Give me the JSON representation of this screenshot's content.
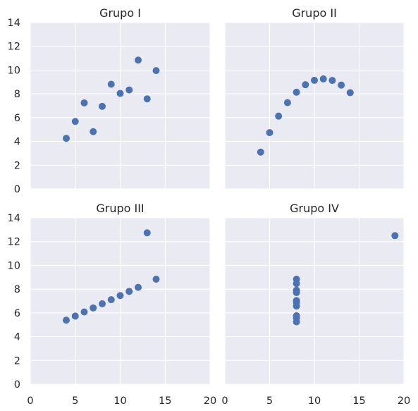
{
  "chart_data": [
    {
      "type": "scatter",
      "title": "Grupo I",
      "x": [
        10,
        8,
        13,
        9,
        11,
        14,
        6,
        4,
        12,
        7,
        5
      ],
      "y": [
        8.04,
        6.95,
        7.58,
        8.81,
        8.33,
        9.96,
        7.24,
        4.26,
        10.84,
        4.82,
        5.68
      ],
      "xlim": [
        0,
        20
      ],
      "ylim": [
        0,
        14
      ],
      "xticks": [
        0,
        5,
        10,
        15,
        20
      ],
      "yticks": [
        0,
        2,
        4,
        6,
        8,
        10,
        12,
        14
      ],
      "show_xticklabels": false,
      "show_yticklabels": true,
      "grid": true,
      "color": "#4c72b0"
    },
    {
      "type": "scatter",
      "title": "Grupo II",
      "x": [
        10,
        8,
        13,
        9,
        11,
        14,
        6,
        4,
        12,
        7,
        5
      ],
      "y": [
        9.14,
        8.14,
        8.74,
        8.77,
        9.26,
        8.1,
        6.13,
        3.1,
        9.13,
        7.26,
        4.74
      ],
      "xlim": [
        0,
        20
      ],
      "ylim": [
        0,
        14
      ],
      "xticks": [
        0,
        5,
        10,
        15,
        20
      ],
      "yticks": [
        0,
        2,
        4,
        6,
        8,
        10,
        12,
        14
      ],
      "show_xticklabels": false,
      "show_yticklabels": false,
      "grid": true,
      "color": "#4c72b0"
    },
    {
      "type": "scatter",
      "title": "Grupo III",
      "x": [
        10,
        8,
        13,
        9,
        11,
        14,
        6,
        4,
        12,
        7,
        5
      ],
      "y": [
        7.46,
        6.77,
        12.74,
        7.11,
        7.81,
        8.84,
        6.08,
        5.39,
        8.15,
        6.42,
        5.73
      ],
      "xlim": [
        0,
        20
      ],
      "ylim": [
        0,
        14
      ],
      "xticks": [
        0,
        5,
        10,
        15,
        20
      ],
      "yticks": [
        0,
        2,
        4,
        6,
        8,
        10,
        12,
        14
      ],
      "show_xticklabels": true,
      "show_yticklabels": true,
      "grid": true,
      "color": "#4c72b0"
    },
    {
      "type": "scatter",
      "title": "Grupo IV",
      "x": [
        8,
        8,
        8,
        8,
        8,
        8,
        8,
        19,
        8,
        8,
        8
      ],
      "y": [
        6.58,
        5.76,
        7.71,
        8.84,
        8.47,
        7.04,
        5.25,
        12.5,
        5.56,
        7.91,
        6.89
      ],
      "xlim": [
        0,
        20
      ],
      "ylim": [
        0,
        14
      ],
      "xticks": [
        0,
        5,
        10,
        15,
        20
      ],
      "yticks": [
        0,
        2,
        4,
        6,
        8,
        10,
        12,
        14
      ],
      "show_xticklabels": true,
      "show_yticklabels": false,
      "grid": true,
      "color": "#4c72b0"
    }
  ]
}
